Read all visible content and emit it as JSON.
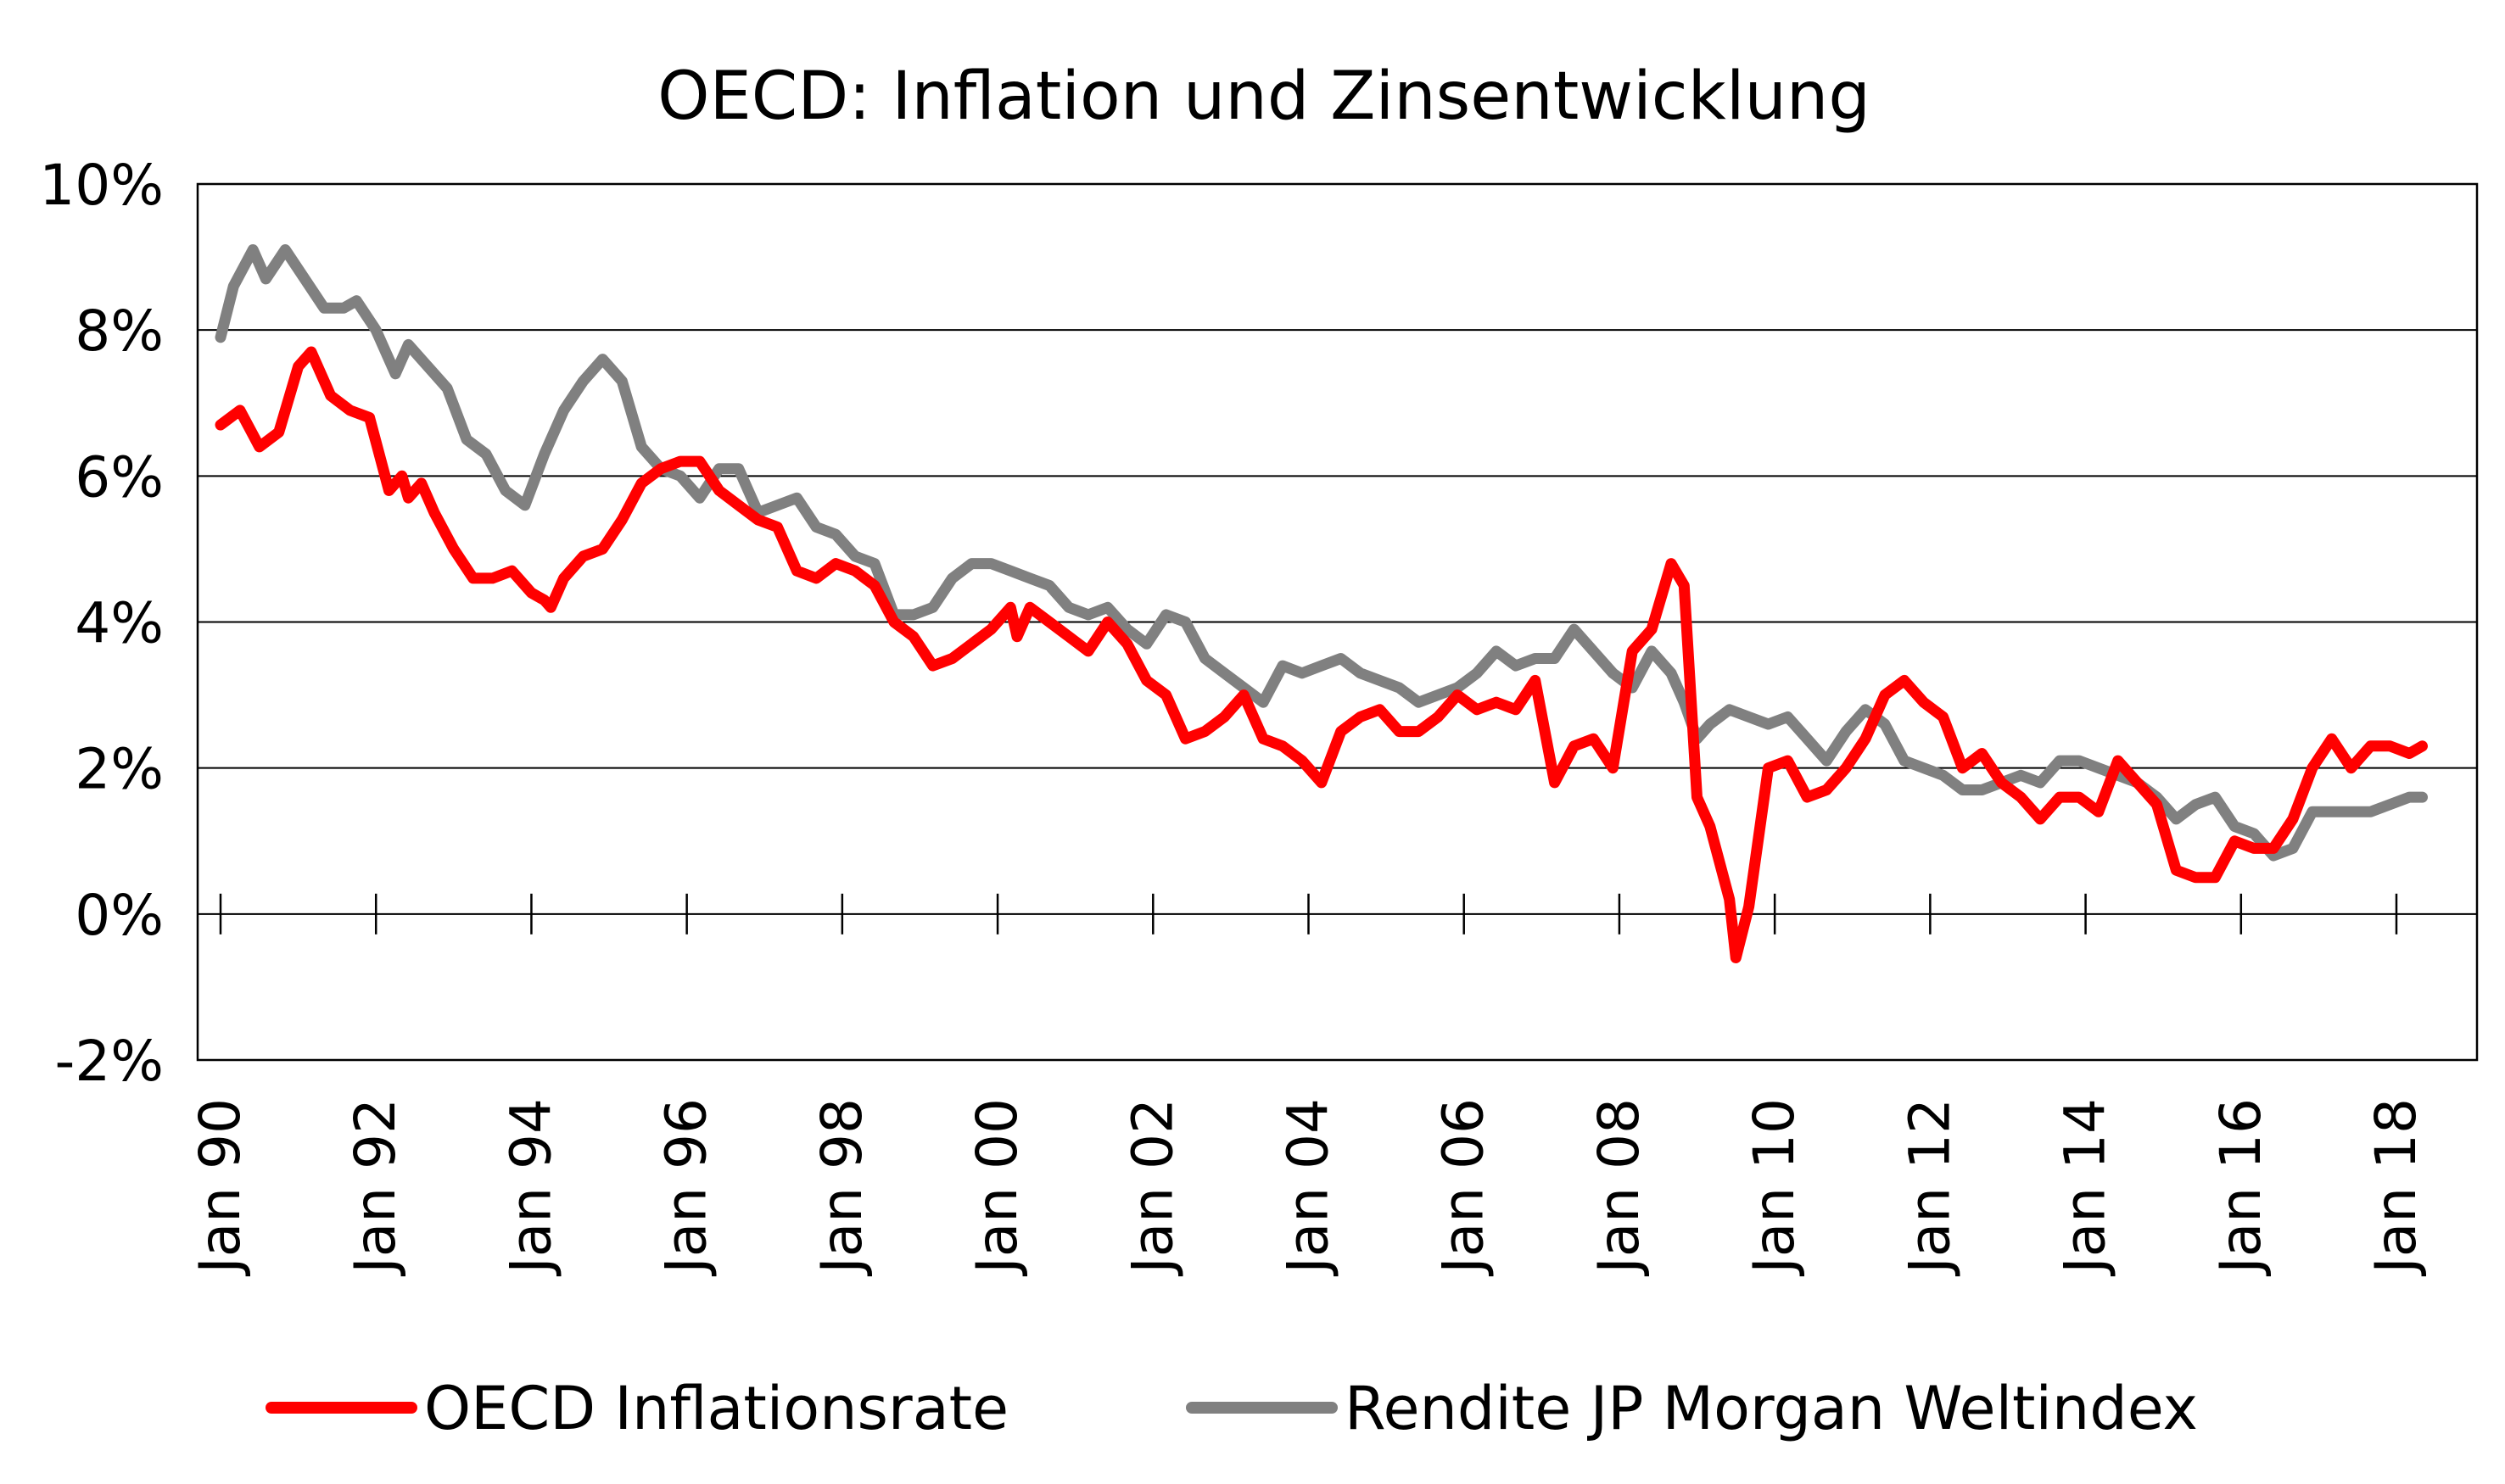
{
  "chart_data": {
    "type": "line",
    "title": "OECD: Inflation und Zinsentwicklung",
    "xlabel": "",
    "ylabel": "",
    "ylim": [
      -2,
      10
    ],
    "y_ticks": [
      -2,
      0,
      2,
      4,
      6,
      8,
      10
    ],
    "y_tick_labels": [
      "-2%",
      "0%",
      "2%",
      "4%",
      "6%",
      "8%",
      "10%"
    ],
    "x_range": [
      "1990-01",
      "2018-05"
    ],
    "x_ticks": [
      "1990-01",
      "1992-01",
      "1994-01",
      "1996-01",
      "1998-01",
      "2000-01",
      "2002-01",
      "2004-01",
      "2006-01",
      "2008-01",
      "2010-01",
      "2012-01",
      "2014-01",
      "2016-01",
      "2018-01"
    ],
    "x_tick_labels": [
      "Jan 90",
      "Jan 92",
      "Jan 94",
      "Jan 96",
      "Jan 98",
      "Jan 00",
      "Jan 02",
      "Jan 04",
      "Jan 06",
      "Jan 08",
      "Jan 10",
      "Jan 12",
      "Jan 14",
      "Jan 16",
      "Jan 18"
    ],
    "grid": "horizontal",
    "legend_position": "bottom",
    "series": [
      {
        "name": "OECD Inflationsrate",
        "color": "#ff0000",
        "points": [
          [
            "1990-01",
            6.7
          ],
          [
            "1990-04",
            6.9
          ],
          [
            "1990-07",
            6.4
          ],
          [
            "1990-10",
            6.6
          ],
          [
            "1991-01",
            7.5
          ],
          [
            "1991-03",
            7.7
          ],
          [
            "1991-06",
            7.1
          ],
          [
            "1991-09",
            6.9
          ],
          [
            "1991-12",
            6.8
          ],
          [
            "1992-03",
            5.8
          ],
          [
            "1992-05",
            6.0
          ],
          [
            "1992-06",
            5.7
          ],
          [
            "1992-08",
            5.9
          ],
          [
            "1992-10",
            5.5
          ],
          [
            "1993-01",
            5.0
          ],
          [
            "1993-04",
            4.6
          ],
          [
            "1993-07",
            4.6
          ],
          [
            "1993-10",
            4.7
          ],
          [
            "1994-01",
            4.4
          ],
          [
            "1994-03",
            4.3
          ],
          [
            "1994-04",
            4.2
          ],
          [
            "1994-06",
            4.6
          ],
          [
            "1994-09",
            4.9
          ],
          [
            "1994-12",
            5.0
          ],
          [
            "1995-03",
            5.4
          ],
          [
            "1995-06",
            5.9
          ],
          [
            "1995-09",
            6.1
          ],
          [
            "1995-12",
            6.2
          ],
          [
            "1996-03",
            6.2
          ],
          [
            "1996-06",
            5.8
          ],
          [
            "1996-09",
            5.6
          ],
          [
            "1996-12",
            5.4
          ],
          [
            "1997-03",
            5.3
          ],
          [
            "1997-06",
            4.7
          ],
          [
            "1997-09",
            4.6
          ],
          [
            "1997-12",
            4.8
          ],
          [
            "1998-03",
            4.7
          ],
          [
            "1998-06",
            4.5
          ],
          [
            "1998-09",
            4.0
          ],
          [
            "1998-12",
            3.8
          ],
          [
            "1999-03",
            3.4
          ],
          [
            "1999-06",
            3.5
          ],
          [
            "1999-09",
            3.7
          ],
          [
            "1999-12",
            3.9
          ],
          [
            "2000-03",
            4.2
          ],
          [
            "2000-04",
            3.8
          ],
          [
            "2000-06",
            4.2
          ],
          [
            "2000-09",
            4.0
          ],
          [
            "2000-12",
            3.8
          ],
          [
            "2001-03",
            3.6
          ],
          [
            "2001-06",
            4.0
          ],
          [
            "2001-09",
            3.7
          ],
          [
            "2001-12",
            3.2
          ],
          [
            "2002-03",
            3.0
          ],
          [
            "2002-06",
            2.4
          ],
          [
            "2002-09",
            2.5
          ],
          [
            "2002-12",
            2.7
          ],
          [
            "2003-03",
            3.0
          ],
          [
            "2003-06",
            2.4
          ],
          [
            "2003-09",
            2.3
          ],
          [
            "2003-12",
            2.1
          ],
          [
            "2004-03",
            1.8
          ],
          [
            "2004-06",
            2.5
          ],
          [
            "2004-09",
            2.7
          ],
          [
            "2004-12",
            2.8
          ],
          [
            "2005-03",
            2.5
          ],
          [
            "2005-06",
            2.5
          ],
          [
            "2005-09",
            2.7
          ],
          [
            "2005-12",
            3.0
          ],
          [
            "2006-03",
            2.8
          ],
          [
            "2006-06",
            2.9
          ],
          [
            "2006-09",
            2.8
          ],
          [
            "2006-12",
            3.2
          ],
          [
            "2007-03",
            1.8
          ],
          [
            "2007-06",
            2.3
          ],
          [
            "2007-09",
            2.4
          ],
          [
            "2007-12",
            2.0
          ],
          [
            "2008-03",
            3.6
          ],
          [
            "2008-06",
            3.9
          ],
          [
            "2008-09",
            4.8
          ],
          [
            "2008-11",
            4.5
          ],
          [
            "2009-01",
            1.6
          ],
          [
            "2009-03",
            1.2
          ],
          [
            "2009-06",
            0.2
          ],
          [
            "2009-07",
            -0.6
          ],
          [
            "2009-09",
            0.1
          ],
          [
            "2009-12",
            2.0
          ],
          [
            "2010-03",
            2.1
          ],
          [
            "2010-06",
            1.6
          ],
          [
            "2010-09",
            1.7
          ],
          [
            "2010-12",
            2.0
          ],
          [
            "2011-03",
            2.4
          ],
          [
            "2011-06",
            3.0
          ],
          [
            "2011-09",
            3.2
          ],
          [
            "2011-12",
            2.9
          ],
          [
            "2012-03",
            2.7
          ],
          [
            "2012-06",
            2.0
          ],
          [
            "2012-09",
            2.2
          ],
          [
            "2012-12",
            1.8
          ],
          [
            "2013-03",
            1.6
          ],
          [
            "2013-06",
            1.3
          ],
          [
            "2013-09",
            1.6
          ],
          [
            "2013-12",
            1.6
          ],
          [
            "2014-03",
            1.4
          ],
          [
            "2014-06",
            2.1
          ],
          [
            "2014-09",
            1.8
          ],
          [
            "2014-12",
            1.5
          ],
          [
            "2015-03",
            0.6
          ],
          [
            "2015-06",
            0.5
          ],
          [
            "2015-09",
            0.5
          ],
          [
            "2015-12",
            1.0
          ],
          [
            "2016-03",
            0.9
          ],
          [
            "2016-06",
            0.9
          ],
          [
            "2016-09",
            1.3
          ],
          [
            "2016-12",
            2.0
          ],
          [
            "2017-03",
            2.4
          ],
          [
            "2017-06",
            2.0
          ],
          [
            "2017-09",
            2.3
          ],
          [
            "2017-12",
            2.3
          ],
          [
            "2018-03",
            2.2
          ],
          [
            "2018-05",
            2.3
          ]
        ]
      },
      {
        "name": "Rendite JP Morgan Weltindex",
        "color": "#808080",
        "points": [
          [
            "1990-01",
            7.9
          ],
          [
            "1990-03",
            8.6
          ],
          [
            "1990-06",
            9.1
          ],
          [
            "1990-08",
            8.7
          ],
          [
            "1990-11",
            9.1
          ],
          [
            "1991-02",
            8.7
          ],
          [
            "1991-05",
            8.3
          ],
          [
            "1991-08",
            8.3
          ],
          [
            "1991-10",
            8.4
          ],
          [
            "1992-01",
            8.0
          ],
          [
            "1992-04",
            7.4
          ],
          [
            "1992-06",
            7.8
          ],
          [
            "1992-09",
            7.5
          ],
          [
            "1992-12",
            7.2
          ],
          [
            "1993-03",
            6.5
          ],
          [
            "1993-06",
            6.3
          ],
          [
            "1993-09",
            5.8
          ],
          [
            "1993-12",
            5.6
          ],
          [
            "1994-03",
            6.3
          ],
          [
            "1994-06",
            6.9
          ],
          [
            "1994-09",
            7.3
          ],
          [
            "1994-12",
            7.6
          ],
          [
            "1995-03",
            7.3
          ],
          [
            "1995-06",
            6.4
          ],
          [
            "1995-09",
            6.1
          ],
          [
            "1995-12",
            6.0
          ],
          [
            "1996-03",
            5.7
          ],
          [
            "1996-06",
            6.1
          ],
          [
            "1996-09",
            6.1
          ],
          [
            "1996-12",
            5.5
          ],
          [
            "1997-03",
            5.6
          ],
          [
            "1997-06",
            5.7
          ],
          [
            "1997-09",
            5.3
          ],
          [
            "1997-12",
            5.2
          ],
          [
            "1998-03",
            4.9
          ],
          [
            "1998-06",
            4.8
          ],
          [
            "1998-09",
            4.1
          ],
          [
            "1998-12",
            4.1
          ],
          [
            "1999-03",
            4.2
          ],
          [
            "1999-06",
            4.6
          ],
          [
            "1999-09",
            4.8
          ],
          [
            "1999-12",
            4.8
          ],
          [
            "2000-03",
            4.7
          ],
          [
            "2000-06",
            4.6
          ],
          [
            "2000-09",
            4.5
          ],
          [
            "2000-12",
            4.2
          ],
          [
            "2001-03",
            4.1
          ],
          [
            "2001-06",
            4.2
          ],
          [
            "2001-09",
            3.9
          ],
          [
            "2001-12",
            3.7
          ],
          [
            "2002-03",
            4.1
          ],
          [
            "2002-06",
            4.0
          ],
          [
            "2002-09",
            3.5
          ],
          [
            "2002-12",
            3.3
          ],
          [
            "2003-03",
            3.1
          ],
          [
            "2003-06",
            2.9
          ],
          [
            "2003-09",
            3.4
          ],
          [
            "2003-12",
            3.3
          ],
          [
            "2004-03",
            3.4
          ],
          [
            "2004-06",
            3.5
          ],
          [
            "2004-09",
            3.3
          ],
          [
            "2004-12",
            3.2
          ],
          [
            "2005-03",
            3.1
          ],
          [
            "2005-06",
            2.9
          ],
          [
            "2005-09",
            3.0
          ],
          [
            "2005-12",
            3.1
          ],
          [
            "2006-03",
            3.3
          ],
          [
            "2006-06",
            3.6
          ],
          [
            "2006-09",
            3.4
          ],
          [
            "2006-12",
            3.5
          ],
          [
            "2007-03",
            3.5
          ],
          [
            "2007-06",
            3.9
          ],
          [
            "2007-09",
            3.6
          ],
          [
            "2007-12",
            3.3
          ],
          [
            "2008-03",
            3.1
          ],
          [
            "2008-06",
            3.6
          ],
          [
            "2008-09",
            3.3
          ],
          [
            "2008-11",
            2.9
          ],
          [
            "2009-01",
            2.4
          ],
          [
            "2009-03",
            2.6
          ],
          [
            "2009-06",
            2.8
          ],
          [
            "2009-09",
            2.7
          ],
          [
            "2009-12",
            2.6
          ],
          [
            "2010-03",
            2.7
          ],
          [
            "2010-06",
            2.4
          ],
          [
            "2010-09",
            2.1
          ],
          [
            "2010-12",
            2.5
          ],
          [
            "2011-03",
            2.8
          ],
          [
            "2011-06",
            2.6
          ],
          [
            "2011-09",
            2.1
          ],
          [
            "2011-12",
            2.0
          ],
          [
            "2012-03",
            1.9
          ],
          [
            "2012-06",
            1.7
          ],
          [
            "2012-09",
            1.7
          ],
          [
            "2012-12",
            1.8
          ],
          [
            "2013-03",
            1.9
          ],
          [
            "2013-06",
            1.8
          ],
          [
            "2013-09",
            2.1
          ],
          [
            "2013-12",
            2.1
          ],
          [
            "2014-03",
            2.0
          ],
          [
            "2014-06",
            1.9
          ],
          [
            "2014-09",
            1.8
          ],
          [
            "2014-12",
            1.6
          ],
          [
            "2015-03",
            1.3
          ],
          [
            "2015-06",
            1.5
          ],
          [
            "2015-09",
            1.6
          ],
          [
            "2015-12",
            1.2
          ],
          [
            "2016-03",
            1.1
          ],
          [
            "2016-06",
            0.8
          ],
          [
            "2016-09",
            0.9
          ],
          [
            "2016-12",
            1.4
          ],
          [
            "2017-03",
            1.4
          ],
          [
            "2017-06",
            1.4
          ],
          [
            "2017-09",
            1.4
          ],
          [
            "2017-12",
            1.5
          ],
          [
            "2018-03",
            1.6
          ],
          [
            "2018-05",
            1.6
          ]
        ]
      }
    ]
  }
}
